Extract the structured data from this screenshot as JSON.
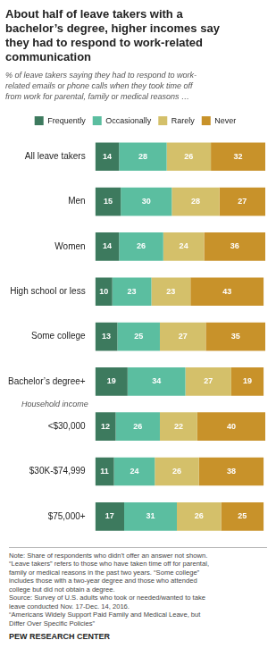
{
  "chart_data": {
    "type": "bar",
    "orientation": "horizontal",
    "stacked": true,
    "title": "About half of leave takers with a\nbachelor’s degree, higher incomes say\nthey had to respond to work-related\ncommunication",
    "subtitle": "% of leave takers saying they had to respond to work-\nrelated emails or phone calls when they took time off\nfrom work for parental, family or medical reasons …",
    "note": "Note: Share of respondents who didn’t offer an answer not shown.\n“Leave takers” refers to those who have taken time off for parental,\nfamily or medical reasons in the past two years. “Some college”\nincludes those with a two-year degree and those who attended\ncollege but did not obtain a degree.\nSource: Survey of U.S. adults who took or needed/wanted to take\nleave conducted Nov. 17-Dec. 14, 2016.\n“Americans Widely Support Paid Family and Medical Leave, but\nDiffer Over Specific Policies”",
    "source": "PEW RESEARCH CENTER",
    "categories": [
      "All leave takers",
      "Men",
      "Women",
      "High school or less",
      "Some college",
      "Bachelor’s degree+",
      "<$30,000",
      "$30K-$74,999",
      "$75,000+"
    ],
    "series": [
      {
        "name": "Frequently",
        "color": "#3d7a5e",
        "values": [
          14,
          15,
          14,
          10,
          13,
          19,
          12,
          11,
          17
        ]
      },
      {
        "name": "Occasionally",
        "color": "#5bbea0",
        "values": [
          28,
          30,
          26,
          23,
          25,
          34,
          26,
          24,
          31
        ]
      },
      {
        "name": "Rarely",
        "color": "#d4c06a",
        "values": [
          26,
          28,
          24,
          23,
          27,
          27,
          22,
          26,
          26
        ]
      },
      {
        "name": "Never",
        "color": "#c8922a",
        "values": [
          32,
          27,
          36,
          43,
          35,
          19,
          40,
          38,
          25
        ]
      }
    ],
    "xlim": [
      0,
      100
    ],
    "grid": false,
    "legend": "top",
    "data_labels": true,
    "tick_labels": "y",
    "annotations": [
      {
        "text": "Household income",
        "category": "<$30,000"
      }
    ]
  }
}
